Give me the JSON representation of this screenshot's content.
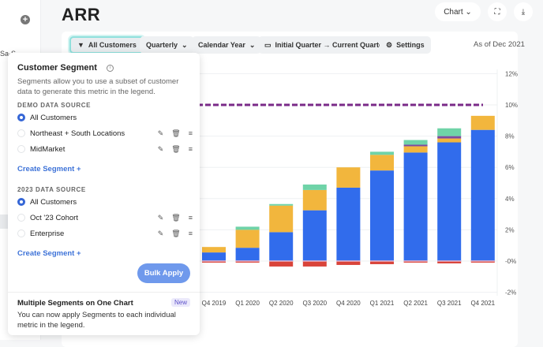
{
  "sidebar": {
    "add_icon": "plus-circle-icon",
    "partial_text": "Sa-S"
  },
  "header": {
    "title": "ARR",
    "view_select": "Chart",
    "expand_icon": "expand-icon",
    "download_icon": "download-icon"
  },
  "toolbar": {
    "segment": "All Customers",
    "segment_icon": "filter-icon",
    "period": "Quarterly",
    "year_type": "Calendar Year",
    "range": "Initial Quarter → Current Quarter",
    "range_icon": "calendar-icon",
    "settings": "Settings",
    "settings_icon": "gear-icon",
    "as_of": "As of Dec 2021"
  },
  "popover": {
    "title": "Customer Segment",
    "description": "Segments allow you to use a subset of customer data to generate this metric in the legend.",
    "sources": [
      {
        "name": "DEMO DATA SOURCE",
        "options": [
          {
            "label": "All Customers",
            "selected": true,
            "editable": false
          },
          {
            "label": "Northeast + South Locations",
            "selected": false,
            "editable": true
          },
          {
            "label": "MidMarket",
            "selected": false,
            "editable": true
          }
        ],
        "create": "Create Segment +"
      },
      {
        "name": "2023 DATA SOURCE",
        "options": [
          {
            "label": "All Customers",
            "selected": true,
            "editable": false
          },
          {
            "label": "Oct '23 Cohort",
            "selected": false,
            "editable": true
          },
          {
            "label": "Enterprise",
            "selected": false,
            "editable": true
          }
        ],
        "create": "Create Segment +"
      }
    ],
    "bulk_apply": "Bulk Apply",
    "notice_title": "Multiple Segments on One Chart",
    "notice_badge": "New",
    "notice_text": "You can now apply Segments to each individual metric in the legend."
  },
  "chart_data": {
    "type": "bar",
    "stacked": true,
    "categories": [
      "Q4 2019",
      "Q1 2020",
      "Q2 2020",
      "Q3 2020",
      "Q4 2020",
      "Q1 2021",
      "Q2 2021",
      "Q3 2021",
      "Q4 2021"
    ],
    "series": [
      {
        "color": "#316cec",
        "values": [
          0.55,
          0.85,
          1.85,
          3.25,
          4.7,
          5.8,
          6.95,
          7.6,
          8.4
        ]
      },
      {
        "color": "#f2b63d",
        "values": [
          0.35,
          1.15,
          1.7,
          1.3,
          1.3,
          1.0,
          0.4,
          0.25,
          0.9
        ]
      },
      {
        "color": "#7d4aa0",
        "values": [
          0,
          0,
          0,
          0,
          0,
          0,
          0.1,
          0.15,
          0
        ]
      },
      {
        "color": "#6fd3a8",
        "values": [
          0,
          0.2,
          0.1,
          0.35,
          0,
          0.2,
          0.3,
          0.5,
          0
        ]
      },
      {
        "color": "#d9443a",
        "values": [
          -0.1,
          -0.1,
          -0.35,
          -0.35,
          -0.25,
          -0.2,
          -0.1,
          -0.15,
          -0.1
        ]
      }
    ],
    "target_line": {
      "value": 10,
      "color": "#7a2a88",
      "style": "dashed"
    },
    "y_ticks": [
      "12%",
      "10%",
      "8%",
      "6%",
      "4%",
      "2%",
      "-0%",
      "-2%"
    ],
    "y_tick_values": [
      12,
      10,
      8,
      6,
      4,
      2,
      0,
      -2
    ],
    "ylim": [
      -2,
      12
    ],
    "y_axis": "right",
    "grid": true
  }
}
